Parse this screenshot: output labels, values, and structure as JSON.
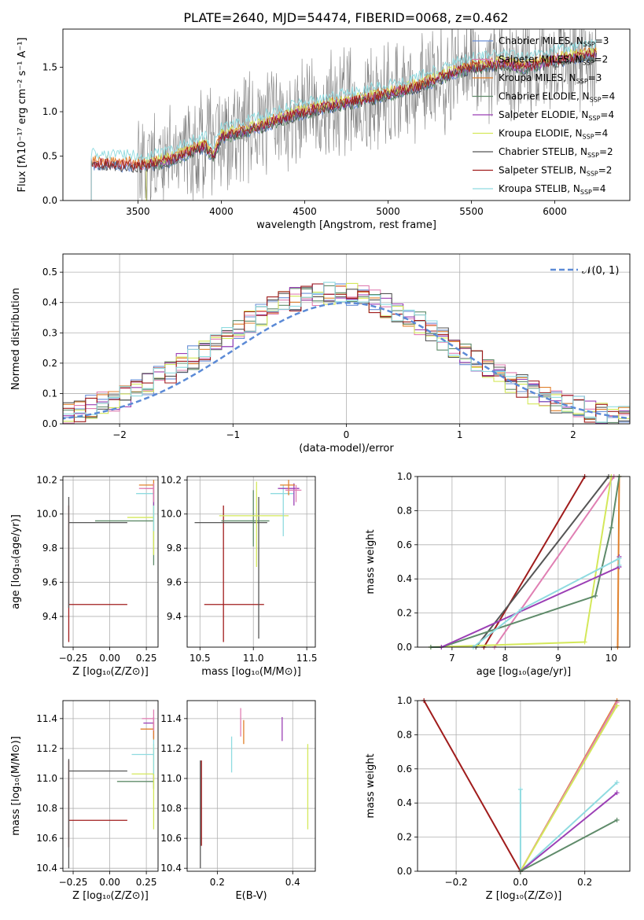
{
  "title": "PLATE=2640, MJD=54474, FIBERID=0068, z=0.462",
  "colors": {
    "data": "#7f7f7f",
    "chabrier_miles": "#6a8fd6",
    "salpeter_miles": "#e07fb3",
    "kroupa_miles": "#e0802c",
    "chabrier_elodie": "#5f8b6a",
    "salpeter_elodie": "#9b3fb5",
    "kroupa_elodie": "#d4e85a",
    "chabrier_stelib": "#555555",
    "salpeter_stelib": "#a01c1c",
    "kroupa_stelib": "#8fdbe0"
  },
  "legend": [
    {
      "key": "chabrier_miles",
      "label": "Chabrier MILES, N",
      "sub": "SSP",
      "tail": "=3"
    },
    {
      "key": "salpeter_miles",
      "label": "Salpeter MILES, N",
      "sub": "SSP",
      "tail": "=2"
    },
    {
      "key": "kroupa_miles",
      "label": "Kroupa MILES, N",
      "sub": "SSP",
      "tail": "=3"
    },
    {
      "key": "chabrier_elodie",
      "label": "Chabrier ELODIE, N",
      "sub": "SSP",
      "tail": "=4"
    },
    {
      "key": "salpeter_elodie",
      "label": "Salpeter ELODIE, N",
      "sub": "SSP",
      "tail": "=4"
    },
    {
      "key": "kroupa_elodie",
      "label": "Kroupa ELODIE, N",
      "sub": "SSP",
      "tail": "=4"
    },
    {
      "key": "chabrier_stelib",
      "label": "Chabrier STELIB, N",
      "sub": "SSP",
      "tail": "=2"
    },
    {
      "key": "salpeter_stelib",
      "label": "Salpeter STELIB, N",
      "sub": "SSP",
      "tail": "=2"
    },
    {
      "key": "kroupa_stelib",
      "label": "Kroupa STELIB, N",
      "sub": "SSP",
      "tail": "=4"
    }
  ],
  "chart_data": [
    {
      "id": "spectrum",
      "type": "line",
      "xlabel": "wavelength [Angstrom, rest frame]",
      "ylabel": "Flux [fλ10⁻¹⁷ erg cm⁻² s⁻¹ A⁻¹]",
      "xlim": [
        3050,
        6450
      ],
      "ylim": [
        0,
        1.93
      ],
      "xticks": [
        3500,
        4000,
        4500,
        5000,
        5500,
        6000
      ],
      "yticks": [
        0.0,
        0.5,
        1.0,
        1.5
      ],
      "grid": false,
      "legend_position": "top-right",
      "continuum": [
        [
          3220,
          0.42
        ],
        [
          3300,
          0.42
        ],
        [
          3500,
          0.4
        ],
        [
          3600,
          0.42
        ],
        [
          3700,
          0.46
        ],
        [
          3800,
          0.55
        ],
        [
          3900,
          0.62
        ],
        [
          3950,
          0.5
        ],
        [
          4000,
          0.72
        ],
        [
          4200,
          0.82
        ],
        [
          4400,
          0.95
        ],
        [
          4600,
          1.05
        ],
        [
          4800,
          1.12
        ],
        [
          5000,
          1.2
        ],
        [
          5200,
          1.3
        ],
        [
          5400,
          1.45
        ],
        [
          5500,
          1.5
        ],
        [
          5700,
          1.55
        ],
        [
          5800,
          1.5
        ],
        [
          6000,
          1.58
        ],
        [
          6200,
          1.65
        ]
      ]
    },
    {
      "id": "residuals",
      "type": "bar",
      "xlabel": "(data-model)/error",
      "ylabel": "Normed distribution",
      "xlim": [
        -2.5,
        2.5
      ],
      "ylim": [
        0,
        0.56
      ],
      "xticks": [
        -2,
        -1,
        0,
        1,
        2
      ],
      "yticks": [
        0.0,
        0.1,
        0.2,
        0.3,
        0.4,
        0.5
      ],
      "grid": true,
      "legend_position": "top-right",
      "reference_label": "𝒩(0, 1)",
      "reference_color": "#5b8ad6",
      "bin_width": 0.1
    },
    {
      "id": "age_vs_Z",
      "type": "scatter",
      "xlabel": "Z [log₁₀(Z/Z⊙)]",
      "ylabel": "age  [log₁₀(age/yr)]",
      "xlim": [
        -0.32,
        0.33
      ],
      "ylim": [
        9.22,
        10.22
      ],
      "xticks": [
        -0.25,
        0.0,
        0.25
      ],
      "yticks": [
        9.4,
        9.6,
        9.8,
        10.0,
        10.2
      ],
      "grid": true,
      "points": [
        {
          "key": "salpeter_stelib",
          "x": -0.28,
          "xerr": [
            0,
            0.4
          ],
          "y": 9.47,
          "yerr": [
            0.22,
            0.58
          ]
        },
        {
          "key": "chabrier_stelib",
          "x": -0.28,
          "xerr": [
            0,
            0.4
          ],
          "y": 9.95,
          "yerr": [
            0.5,
            0.15
          ]
        },
        {
          "key": "chabrier_elodie",
          "x": 0.3,
          "xerr": [
            0.4,
            0
          ],
          "y": 9.96,
          "yerr": [
            0.26,
            0.18
          ]
        },
        {
          "key": "kroupa_elodie",
          "x": 0.3,
          "xerr": [
            0.18,
            0
          ],
          "y": 9.98,
          "yerr": [
            0.22,
            0.2
          ]
        },
        {
          "key": "kroupa_stelib",
          "x": 0.3,
          "xerr": [
            0.12,
            0
          ],
          "y": 10.12,
          "yerr": [
            0.22,
            0.05
          ]
        },
        {
          "key": "salpeter_elodie",
          "x": 0.3,
          "xerr": [
            0.06,
            0
          ],
          "y": 10.15,
          "yerr": [
            0.1,
            0.03
          ]
        },
        {
          "key": "kroupa_miles",
          "x": 0.3,
          "xerr": [
            0.1,
            0
          ],
          "y": 10.17,
          "yerr": [
            0.05,
            0.03
          ]
        },
        {
          "key": "salpeter_miles",
          "x": 0.3,
          "xerr": [
            0.1,
            0
          ],
          "y": 10.15,
          "yerr": [
            0.08,
            0.03
          ]
        }
      ]
    },
    {
      "id": "age_vs_mass",
      "type": "scatter",
      "xlabel": "mass [log₁₀(M/M⊙)]",
      "ylabel": "",
      "xlim": [
        10.38,
        11.58
      ],
      "ylim": [
        9.22,
        10.22
      ],
      "xticks": [
        10.5,
        11.0,
        11.5
      ],
      "yticks": [
        9.4,
        9.6,
        9.8,
        10.0,
        10.2
      ],
      "grid": true,
      "points": [
        {
          "key": "salpeter_stelib",
          "x": 10.72,
          "xerr": [
            0.18,
            0.38
          ],
          "y": 9.47,
          "yerr": [
            0.22,
            0.58
          ]
        },
        {
          "key": "chabrier_stelib",
          "x": 11.05,
          "xerr": [
            0.6,
            0.08
          ],
          "y": 9.95,
          "yerr": [
            0.68,
            0.15
          ]
        },
        {
          "key": "chabrier_elodie",
          "x": 11.0,
          "xerr": [
            0.3,
            0.15
          ],
          "y": 9.96,
          "yerr": [
            0.15,
            0.18
          ]
        },
        {
          "key": "kroupa_elodie",
          "x": 11.03,
          "xerr": [
            0.35,
            0.3
          ],
          "y": 9.99,
          "yerr": [
            0.3,
            0.2
          ]
        },
        {
          "key": "kroupa_stelib",
          "x": 11.28,
          "xerr": [
            0.12,
            0.1
          ],
          "y": 10.12,
          "yerr": [
            0.25,
            0.05
          ]
        },
        {
          "key": "salpeter_elodie",
          "x": 11.38,
          "xerr": [
            0.15,
            0.05
          ],
          "y": 10.15,
          "yerr": [
            0.1,
            0.03
          ]
        },
        {
          "key": "kroupa_miles",
          "x": 11.33,
          "xerr": [
            0.08,
            0.06
          ],
          "y": 10.17,
          "yerr": [
            0.06,
            0.03
          ]
        },
        {
          "key": "salpeter_miles",
          "x": 11.4,
          "xerr": [
            0.1,
            0.05
          ],
          "y": 10.14,
          "yerr": [
            0.07,
            0.03
          ]
        }
      ]
    },
    {
      "id": "weight_vs_age",
      "type": "line",
      "xlabel": "age  [log₁₀(age/yr)]",
      "ylabel": "mass weight",
      "xlim": [
        6.35,
        10.35
      ],
      "ylim": [
        0,
        1
      ],
      "xticks": [
        7,
        8,
        9,
        10
      ],
      "yticks": [
        0.0,
        0.2,
        0.4,
        0.6,
        0.8,
        1.0
      ],
      "grid": true,
      "series": [
        {
          "key": "salpeter_stelib",
          "points": [
            [
              7.6,
              0
            ],
            [
              9.5,
              1.0
            ]
          ]
        },
        {
          "key": "chabrier_stelib",
          "points": [
            [
              7.45,
              0
            ],
            [
              9.95,
              1.0
            ]
          ]
        },
        {
          "key": "salpeter_miles",
          "points": [
            [
              7.8,
              0
            ],
            [
              10.05,
              1.0
            ]
          ]
        },
        {
          "key": "kroupa_elodie",
          "points": [
            [
              6.6,
              0
            ],
            [
              9.5,
              0.03
            ],
            [
              10.0,
              1.0
            ]
          ]
        },
        {
          "key": "kroupa_miles",
          "points": [
            [
              10.12,
              0
            ],
            [
              10.15,
              1.0
            ]
          ]
        },
        {
          "key": "chabrier_elodie",
          "points": [
            [
              6.6,
              0
            ],
            [
              6.8,
              0.0
            ],
            [
              9.7,
              0.3
            ],
            [
              10.0,
              0.7
            ],
            [
              10.15,
              1.0
            ]
          ]
        },
        {
          "key": "salpeter_elodie",
          "points": [
            [
              6.8,
              0
            ],
            [
              10.15,
              0.47
            ],
            [
              10.15,
              0.53
            ]
          ]
        },
        {
          "key": "kroupa_stelib",
          "points": [
            [
              7.4,
              0
            ],
            [
              8.3,
              0.22
            ],
            [
              10.15,
              0.52
            ],
            [
              10.15,
              0.48
            ]
          ]
        }
      ]
    },
    {
      "id": "mass_vs_Z",
      "type": "scatter",
      "xlabel": "Z [log₁₀(Z/Z⊙)]",
      "ylabel": "mass [log₁₀(M/M⊙)]",
      "xlim": [
        -0.32,
        0.33
      ],
      "ylim": [
        10.38,
        11.52
      ],
      "xticks": [
        -0.25,
        0.0,
        0.25
      ],
      "yticks": [
        10.4,
        10.6,
        10.8,
        11.0,
        11.2,
        11.4
      ],
      "grid": true,
      "points": [
        {
          "key": "salpeter_stelib",
          "x": -0.28,
          "xerr": [
            0,
            0.4
          ],
          "y": 10.72,
          "yerr": [
            0.18,
            0.4
          ]
        },
        {
          "key": "chabrier_stelib",
          "x": -0.28,
          "xerr": [
            0,
            0.4
          ],
          "y": 11.05,
          "yerr": [
            0.65,
            0.08
          ]
        },
        {
          "key": "chabrier_elodie",
          "x": 0.3,
          "xerr": [
            0.25,
            0
          ],
          "y": 10.98,
          "yerr": [
            0.05,
            0.05
          ]
        },
        {
          "key": "kroupa_elodie",
          "x": 0.3,
          "xerr": [
            0.15,
            0
          ],
          "y": 11.03,
          "yerr": [
            0.37,
            0.2
          ]
        },
        {
          "key": "kroupa_stelib",
          "x": 0.3,
          "xerr": [
            0.15,
            0
          ],
          "y": 11.16,
          "yerr": [
            0.13,
            0.12
          ]
        },
        {
          "key": "salpeter_elodie",
          "x": 0.3,
          "xerr": [
            0.07,
            0
          ],
          "y": 11.37,
          "yerr": [
            0.1,
            0.04
          ]
        },
        {
          "key": "kroupa_miles",
          "x": 0.3,
          "xerr": [
            0.09,
            0
          ],
          "y": 11.33,
          "yerr": [
            0.07,
            0.05
          ]
        },
        {
          "key": "salpeter_miles",
          "x": 0.3,
          "xerr": [
            0.08,
            0
          ],
          "y": 11.4,
          "yerr": [
            0.08,
            0.06
          ]
        }
      ]
    },
    {
      "id": "mass_vs_ebv",
      "type": "scatter",
      "xlabel": "E(B-V)",
      "ylabel": "",
      "xlim": [
        0.12,
        0.46
      ],
      "ylim": [
        10.38,
        11.52
      ],
      "xticks": [
        0.2,
        0.4
      ],
      "yticks": [
        10.4,
        10.6,
        10.8,
        11.0,
        11.2,
        11.4
      ],
      "grid": true,
      "points": [
        {
          "key": "chabrier_stelib",
          "x": 0.155,
          "y": 11.05,
          "yerr": [
            0.65,
            0.07
          ]
        },
        {
          "key": "salpeter_stelib",
          "x": 0.158,
          "y": 10.72,
          "yerr": [
            0.17,
            0.4
          ]
        },
        {
          "key": "kroupa_stelib",
          "x": 0.238,
          "y": 11.16,
          "yerr": [
            0.12,
            0.12
          ]
        },
        {
          "key": "salpeter_miles",
          "x": 0.262,
          "y": 11.4,
          "yerr": [
            0.12,
            0.07
          ]
        },
        {
          "key": "kroupa_miles",
          "x": 0.27,
          "y": 11.33,
          "yerr": [
            0.1,
            0.06
          ]
        },
        {
          "key": "salpeter_elodie",
          "x": 0.372,
          "y": 11.37,
          "yerr": [
            0.12,
            0.04
          ]
        },
        {
          "key": "kroupa_elodie",
          "x": 0.44,
          "y": 11.03,
          "yerr": [
            0.37,
            0.2
          ]
        }
      ]
    },
    {
      "id": "weight_vs_Z",
      "type": "line",
      "xlabel": "Z [log₁₀(Z/Z⊙)]",
      "ylabel": "mass weight",
      "xlim": [
        -0.32,
        0.34
      ],
      "ylim": [
        0,
        1
      ],
      "xticks": [
        -0.2,
        0.0,
        0.2
      ],
      "yticks": [
        0.0,
        0.2,
        0.4,
        0.6,
        0.8,
        1.0
      ],
      "grid": true,
      "series": [
        {
          "key": "salpeter_stelib",
          "points": [
            [
              -0.3,
              1.0
            ],
            [
              0.0,
              0.0
            ]
          ]
        },
        {
          "key": "kroupa_stelib",
          "points": [
            [
              0.0,
              0.48
            ],
            [
              0.0,
              0.0
            ],
            [
              0.3,
              0.52
            ]
          ]
        },
        {
          "key": "kroupa_miles",
          "points": [
            [
              0.0,
              0.0
            ],
            [
              0.3,
              1.0
            ]
          ]
        },
        {
          "key": "salpeter_miles",
          "points": [
            [
              0.0,
              0.0
            ],
            [
              0.3,
              0.99
            ]
          ]
        },
        {
          "key": "kroupa_elodie",
          "points": [
            [
              0.0,
              0.0
            ],
            [
              0.3,
              0.97
            ]
          ]
        },
        {
          "key": "salpeter_elodie",
          "points": [
            [
              0.0,
              0.0
            ],
            [
              0.3,
              0.46
            ]
          ]
        },
        {
          "key": "chabrier_elodie",
          "points": [
            [
              0.0,
              0.0
            ],
            [
              0.3,
              0.3
            ]
          ]
        }
      ]
    }
  ]
}
